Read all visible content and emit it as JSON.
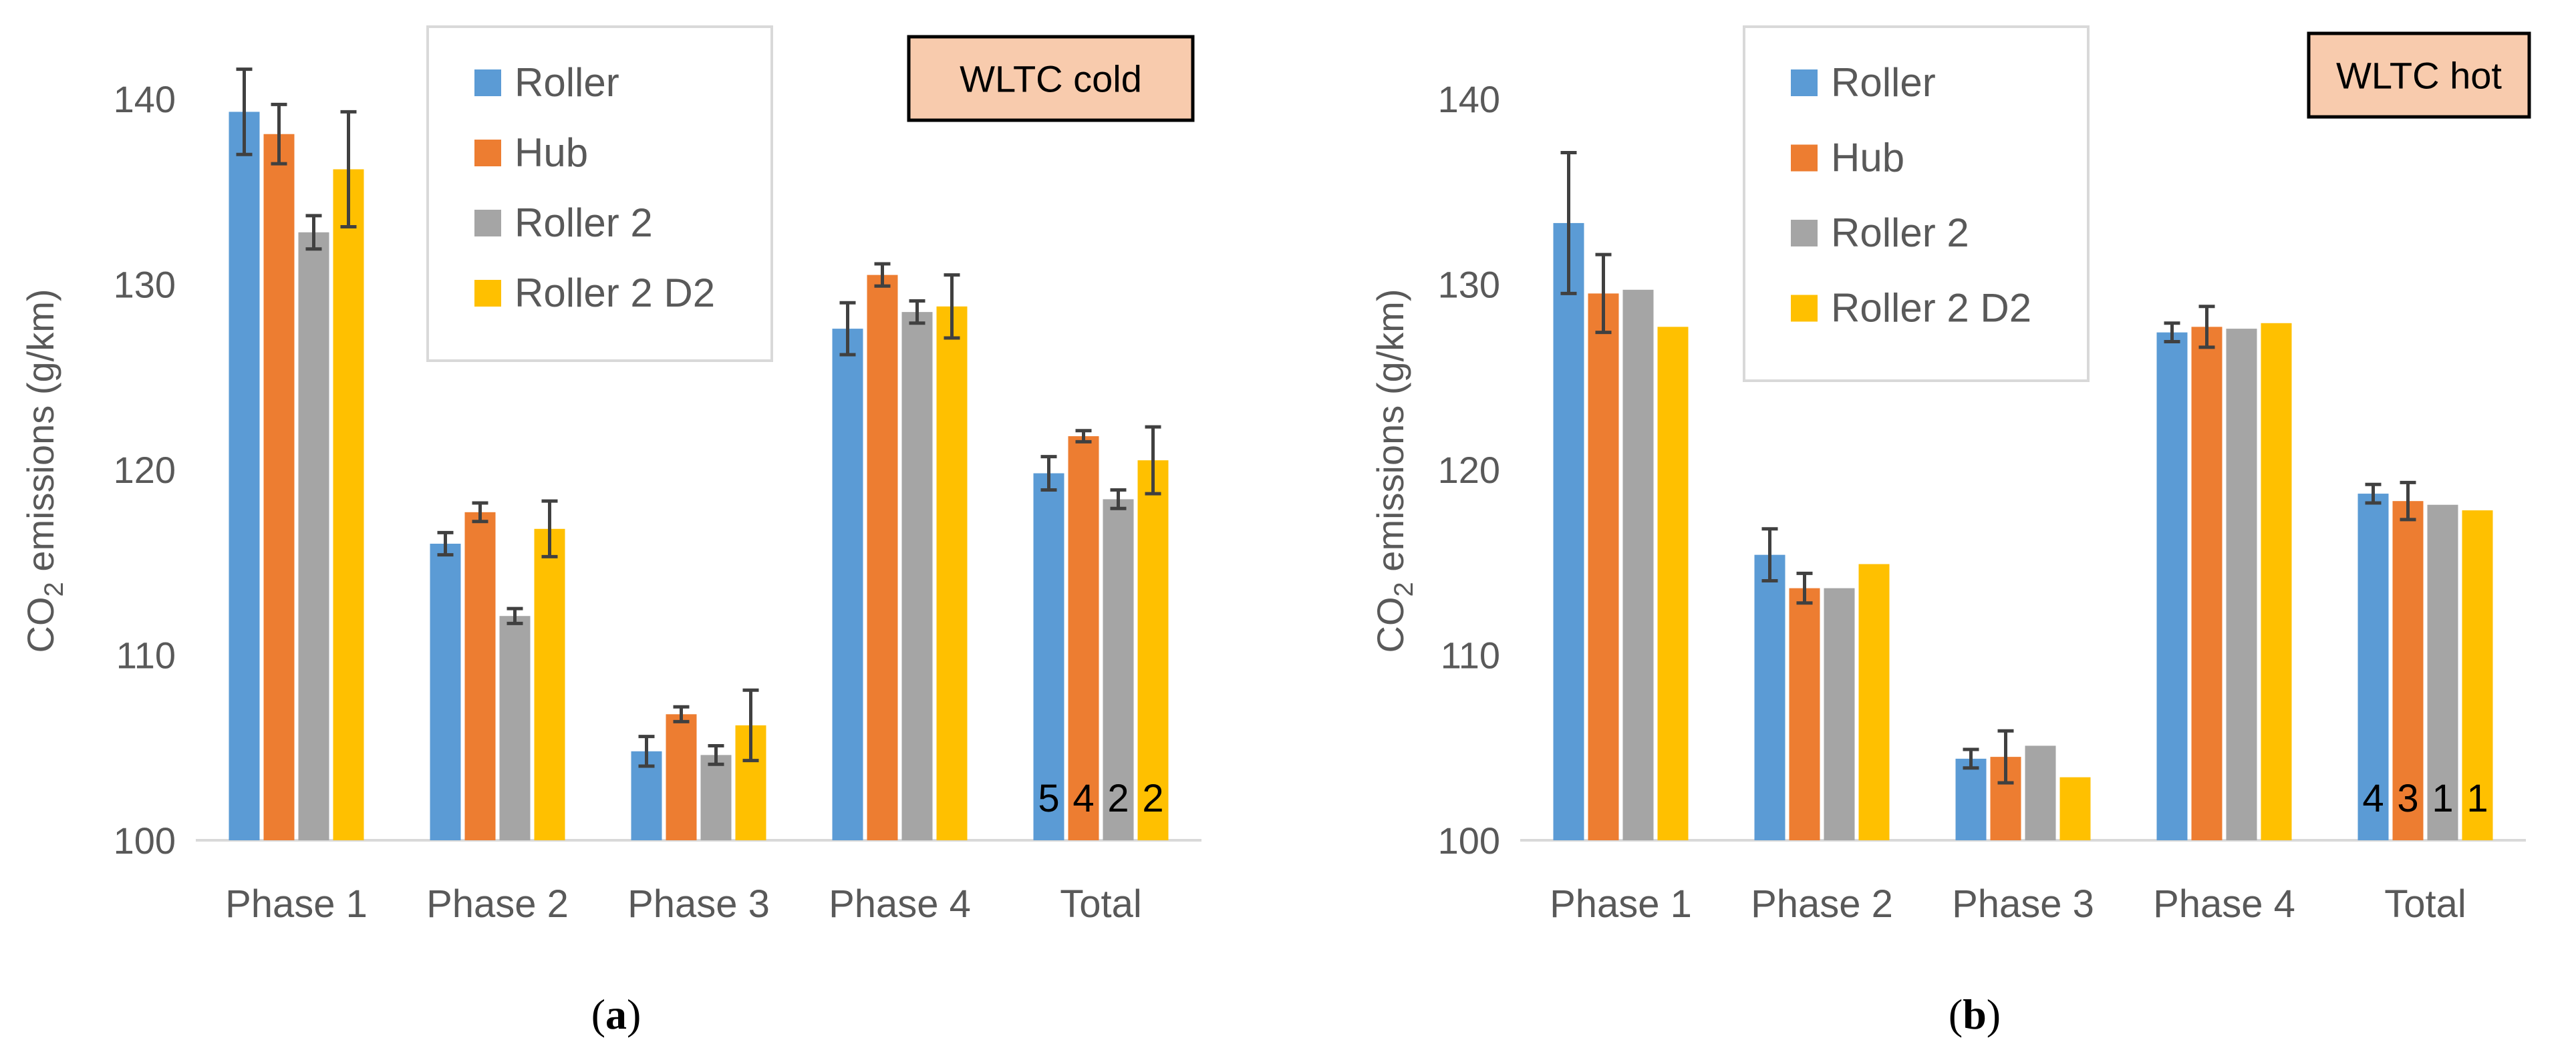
{
  "series_colors": [
    "#5b9bd5",
    "#ed7d31",
    "#a5a5a5",
    "#ffc000"
  ],
  "badge_fill": "#f8cbad",
  "chart_data": [
    {
      "type": "bar",
      "panel_label": "a",
      "title": "WLTC cold",
      "ylabel_main": "CO",
      "ylabel_sub": "2",
      "ylabel_rest": " emissions (g/km)",
      "ylim": [
        100,
        145
      ],
      "yticks": [
        100,
        110,
        120,
        130,
        140
      ],
      "categories": [
        "Phase 1",
        "Phase 2",
        "Phase 3",
        "Phase 4",
        "Total"
      ],
      "legend": {
        "position": "top-center"
      },
      "series": [
        {
          "name": "Roller",
          "values": [
            139.3,
            116.0,
            104.8,
            127.6,
            119.8
          ],
          "errors": [
            2.3,
            0.6,
            0.8,
            1.4,
            0.9
          ]
        },
        {
          "name": "Hub",
          "values": [
            138.1,
            117.7,
            106.8,
            130.5,
            121.8
          ],
          "errors": [
            1.6,
            0.5,
            0.4,
            0.6,
            0.3
          ]
        },
        {
          "name": "Roller 2",
          "values": [
            132.8,
            112.1,
            104.6,
            128.5,
            118.4
          ],
          "errors": [
            0.9,
            0.4,
            0.5,
            0.6,
            0.5
          ]
        },
        {
          "name": "Roller 2 D2",
          "values": [
            136.2,
            116.8,
            106.2,
            128.8,
            120.5
          ],
          "errors": [
            3.1,
            1.5,
            1.9,
            1.7,
            1.8
          ]
        }
      ],
      "sample_counts": [
        "5",
        "4",
        "2",
        "2"
      ]
    },
    {
      "type": "bar",
      "panel_label": "b",
      "title": "WLTC hot",
      "ylabel_main": "CO",
      "ylabel_sub": "2",
      "ylabel_rest": " emissions (g/km)",
      "ylim": [
        100,
        145
      ],
      "yticks": [
        100,
        110,
        120,
        130,
        140
      ],
      "categories": [
        "Phase 1",
        "Phase 2",
        "Phase 3",
        "Phase 4",
        "Total"
      ],
      "legend": {
        "position": "top-center"
      },
      "series": [
        {
          "name": "Roller",
          "values": [
            133.3,
            115.4,
            104.4,
            127.4,
            118.7
          ],
          "errors": [
            3.8,
            1.4,
            0.5,
            0.5,
            0.5
          ]
        },
        {
          "name": "Hub",
          "values": [
            129.5,
            113.6,
            104.5,
            127.7,
            118.3
          ],
          "errors": [
            2.1,
            0.8,
            1.4,
            1.1,
            1.0
          ]
        },
        {
          "name": "Roller 2",
          "values": [
            129.7,
            113.6,
            105.1,
            127.6,
            118.1
          ],
          "errors": [
            0,
            0,
            0,
            0,
            0
          ]
        },
        {
          "name": "Roller 2 D2",
          "values": [
            127.7,
            114.9,
            103.4,
            127.9,
            117.8
          ],
          "errors": [
            0,
            0,
            0,
            0,
            0
          ]
        }
      ],
      "sample_counts": [
        "4",
        "3",
        "1",
        "1"
      ]
    }
  ]
}
